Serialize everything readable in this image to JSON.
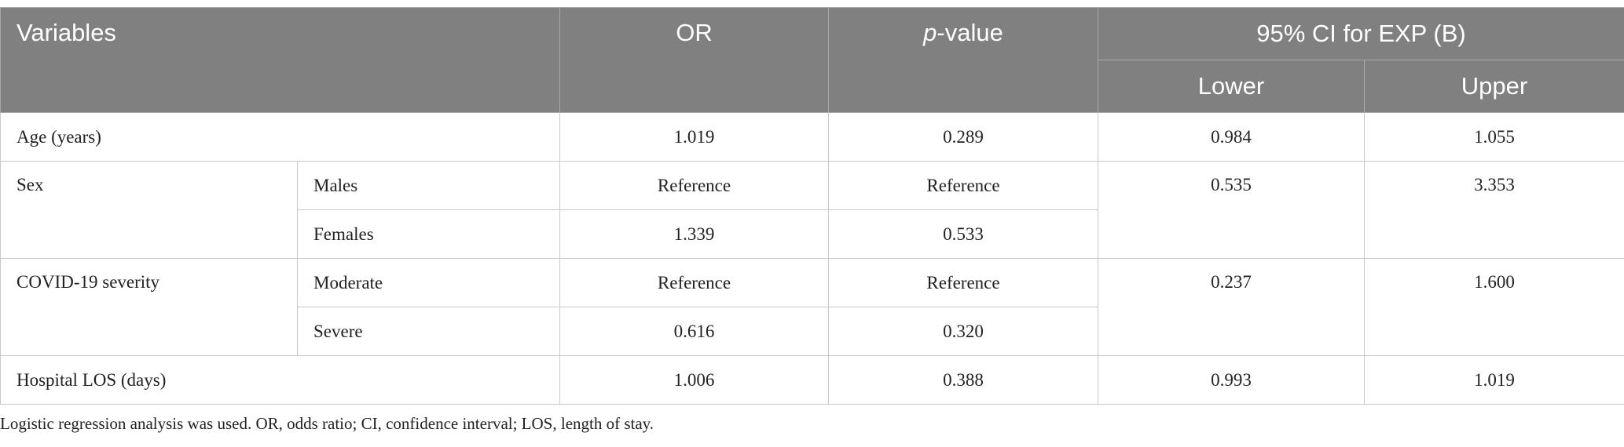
{
  "table": {
    "header": {
      "variables": "Variables",
      "or": "OR",
      "p_value": {
        "italic": "p",
        "rest": "-value"
      },
      "ci": "95% CI for EXP (B)",
      "lower": "Lower",
      "upper": "Upper"
    },
    "rows": [
      {
        "label": "Age (years)",
        "or": "1.019",
        "p": "0.289",
        "lower": "0.984",
        "upper": "1.055"
      },
      {
        "label": "Sex",
        "levels": [
          {
            "name": "Males",
            "or": "Reference",
            "p": "Reference"
          },
          {
            "name": "Females",
            "or": "1.339",
            "p": "0.533"
          }
        ],
        "lower": "0.535",
        "upper": "3.353"
      },
      {
        "label": "COVID-19 severity",
        "levels": [
          {
            "name": "Moderate",
            "or": "Reference",
            "p": "Reference"
          },
          {
            "name": "Severe",
            "or": "0.616",
            "p": "0.320"
          }
        ],
        "lower": "0.237",
        "upper": "1.600"
      },
      {
        "label": "Hospital LOS (days)",
        "or": "1.006",
        "p": "0.388",
        "lower": "0.993",
        "upper": "1.019"
      }
    ],
    "footnote": "Logistic regression analysis was used. OR, odds ratio; CI, confidence interval; LOS, length of stay."
  }
}
